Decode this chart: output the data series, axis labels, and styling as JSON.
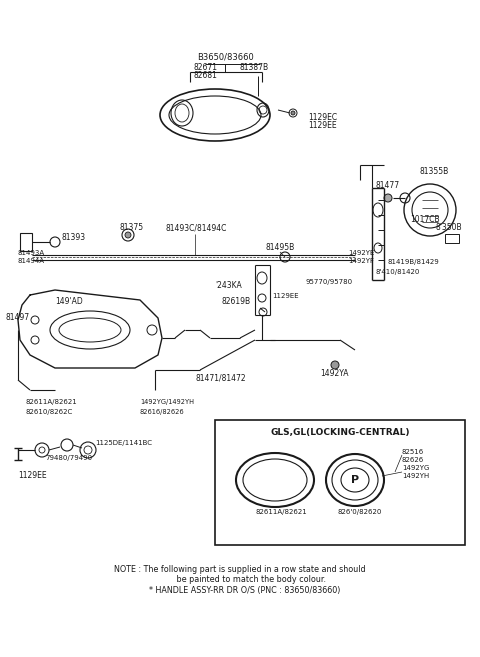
{
  "background_color": "#ffffff",
  "line_color": "#1a1a1a",
  "text_color": "#1a1a1a",
  "note_line1": "NOTE : The following part is supplied in a row state and should",
  "note_line2": "         be painted to match the body colour.",
  "note_line3": "    * HANDLE ASSY-RR DR O/S (PNC : 83650/83660)"
}
